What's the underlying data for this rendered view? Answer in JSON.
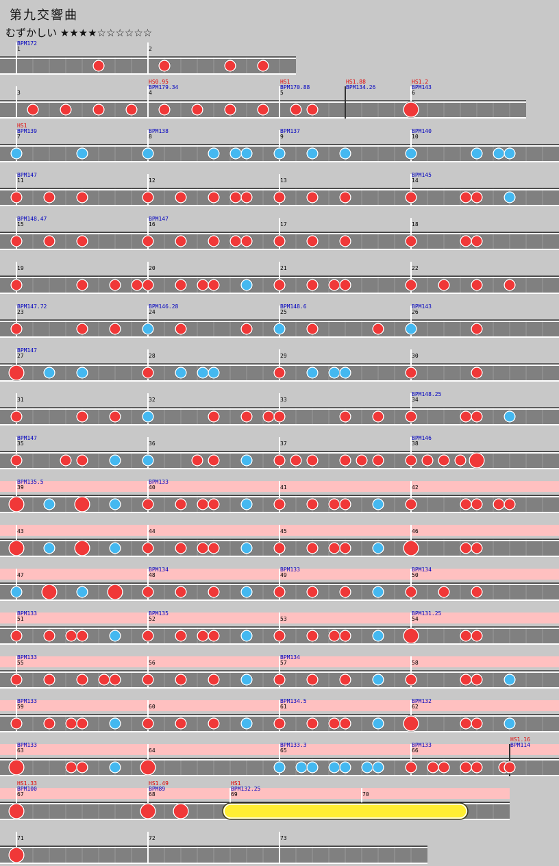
{
  "header": {
    "title": "第九交響曲",
    "difficulty": "むずかしい ★★★★☆☆☆☆☆☆"
  },
  "rows": [
    {
      "markers": [
        {
          "bpm": "BPM172",
          "measure": "1"
        },
        {
          "measure": "2"
        }
      ]
    },
    {
      "markers": [
        {
          "measure": "3"
        },
        {
          "hs": "HS0.95",
          "bpm": "BPM179.34",
          "measure": "4"
        },
        {
          "hs": "HS1",
          "bpm": "BPM170.88",
          "measure": "5"
        },
        {
          "hs": "HS1.88",
          "bpm": "BPM134.26"
        },
        {
          "hs": "HS1.2",
          "bpm": "BPM143",
          "measure": "6"
        }
      ]
    },
    {
      "markers": [
        {
          "hs": "HS1",
          "bpm": "BPM139",
          "measure": "7"
        },
        {
          "bpm": "BPM138",
          "measure": "8"
        },
        {
          "bpm": "BPM137",
          "measure": "9"
        },
        {
          "bpm": "BPM140",
          "measure": "10"
        }
      ]
    },
    {
      "markers": [
        {
          "bpm": "BPM147",
          "measure": "11"
        },
        {
          "measure": "12"
        },
        {
          "measure": "13"
        },
        {
          "bpm": "BPM145",
          "measure": "14"
        }
      ]
    },
    {
      "markers": [
        {
          "bpm": "BPM148.47",
          "measure": "15"
        },
        {
          "bpm": "BPM147",
          "measure": "16"
        },
        {
          "measure": "17"
        },
        {
          "measure": "18"
        }
      ]
    },
    {
      "markers": [
        {
          "measure": "19"
        },
        {
          "measure": "20"
        },
        {
          "measure": "21"
        },
        {
          "measure": "22"
        }
      ]
    },
    {
      "markers": [
        {
          "bpm": "BPM147.72",
          "measure": "23"
        },
        {
          "bpm": "BPM146.28",
          "measure": "24"
        },
        {
          "bpm": "BPM148.6",
          "measure": "25"
        },
        {
          "bpm": "BPM143",
          "measure": "26"
        }
      ]
    },
    {
      "markers": [
        {
          "bpm": "BPM147",
          "measure": "27"
        },
        {
          "measure": "28"
        },
        {
          "measure": "29"
        },
        {
          "measure": "30"
        }
      ]
    },
    {
      "markers": [
        {
          "measure": "31"
        },
        {
          "measure": "32"
        },
        {
          "measure": "33"
        },
        {
          "bpm": "BPM148.25",
          "measure": "34"
        }
      ]
    },
    {
      "markers": [
        {
          "bpm": "BPM147",
          "measure": "35"
        },
        {
          "measure": "36"
        },
        {
          "measure": "37"
        },
        {
          "bpm": "BPM146",
          "measure": "38"
        }
      ]
    },
    {
      "markers": [
        {
          "bpm": "BPM135.5",
          "measure": "39"
        },
        {
          "bpm": "BPM133",
          "measure": "40"
        },
        {
          "measure": "41"
        },
        {
          "measure": "42"
        }
      ]
    },
    {
      "markers": [
        {
          "measure": "43"
        },
        {
          "measure": "44"
        },
        {
          "measure": "45"
        },
        {
          "measure": "46"
        }
      ]
    },
    {
      "markers": [
        {
          "measure": "47"
        },
        {
          "bpm": "BPM134",
          "measure": "48"
        },
        {
          "bpm": "BPM133",
          "measure": "49"
        },
        {
          "bpm": "BPM134",
          "measure": "50"
        }
      ]
    },
    {
      "markers": [
        {
          "bpm": "BPM133",
          "measure": "51"
        },
        {
          "bpm": "BPM135",
          "measure": "52"
        },
        {
          "measure": "53"
        },
        {
          "bpm": "BPM131.25",
          "measure": "54"
        }
      ]
    },
    {
      "markers": [
        {
          "bpm": "BPM133",
          "measure": "55"
        },
        {
          "measure": "56"
        },
        {
          "bpm": "BPM134",
          "measure": "57"
        },
        {
          "measure": "58"
        }
      ]
    },
    {
      "markers": [
        {
          "bpm": "BPM133",
          "measure": "59"
        },
        {
          "measure": "60"
        },
        {
          "bpm": "BPM134.5",
          "measure": "61"
        },
        {
          "bpm": "BPM132",
          "measure": "62"
        }
      ]
    },
    {
      "markers": [
        {
          "bpm": "BPM133",
          "measure": "63"
        },
        {
          "measure": "64"
        },
        {
          "bpm": "BPM133.3",
          "measure": "65"
        },
        {
          "bpm": "BPM133",
          "measure": "66"
        },
        {
          "hs": "HS1.16",
          "bpm": "BPM114"
        }
      ]
    },
    {
      "markers": [
        {
          "hs": "HS1.33",
          "bpm": "BPM100",
          "measure": "67"
        },
        {
          "hs": "HS1.49",
          "bpm": "BPM89",
          "measure": "68"
        },
        {
          "hs": "HS1",
          "bpm": "BPM132.25",
          "measure": "69"
        },
        {
          "measure": "70"
        }
      ]
    },
    {
      "markers": [
        {
          "measure": "71"
        },
        {
          "measure": "72"
        },
        {
          "measure": "73"
        }
      ]
    }
  ]
}
